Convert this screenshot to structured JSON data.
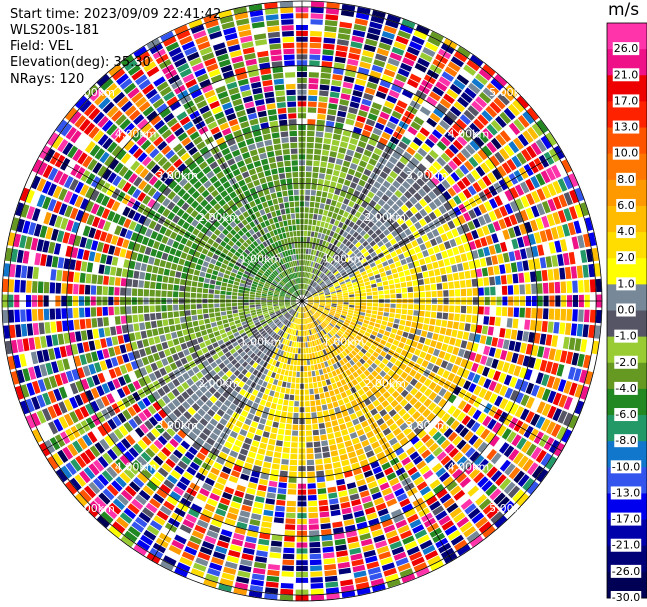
{
  "info": {
    "start_time": "Start time: 2023/09/09 22:41:42",
    "instrument": "WLS200s-181",
    "field": "Field: VEL",
    "elevation": "Elevation(deg): 35.30",
    "nrays": "NRays: 120"
  },
  "chart_data": {
    "type": "heatmap",
    "projection": "polar-ppi",
    "field": "VEL",
    "units": "m/s",
    "nrays": 120,
    "elevation_deg": 35.3,
    "range_rings_km": [
      1,
      2,
      3,
      4,
      5
    ],
    "range_ring_labels": [
      "1.00km",
      "2.00km",
      "3.00km",
      "4.00km",
      "5.00km"
    ],
    "max_range_km": 5.1,
    "colorbar": {
      "title": "m/s",
      "ticks": [
        "26.0",
        "21.0",
        "17.0",
        "13.0",
        "10.0",
        "8.0",
        "6.0",
        "4.0",
        "2.0",
        "1.0",
        "0.0",
        "-1.0",
        "-2.0",
        "-4.0",
        "-6.0",
        "-8.0",
        "-10.0",
        "-13.0",
        "-17.0",
        "-21.0",
        "-26.0",
        "-30.0"
      ],
      "bin_edges": [
        30,
        26,
        21,
        17,
        13,
        10,
        8,
        6,
        4,
        2,
        1,
        0,
        -1,
        -2,
        -4,
        -6,
        -8,
        -10,
        -13,
        -17,
        -21,
        -26,
        -30
      ],
      "colors": [
        "#ff33aa",
        "#ee1188",
        "#ee0000",
        "#ff2200",
        "#ff5500",
        "#ff7700",
        "#ff9900",
        "#ffbb00",
        "#ffdd00",
        "#ffff00",
        "#778899",
        "#555566",
        "#99cc33",
        "#669922",
        "#228822",
        "#229966",
        "#1177cc",
        "#3355ee",
        "#0000ee",
        "#0000aa",
        "#000077",
        "#000055"
      ]
    },
    "pattern": {
      "near_field": {
        "max_km": 3.0,
        "toward_sector": "south-east",
        "toward_value": 4.5,
        "away_sector": "north-west",
        "away_value": -4.5
      },
      "far_field": "noise"
    }
  }
}
